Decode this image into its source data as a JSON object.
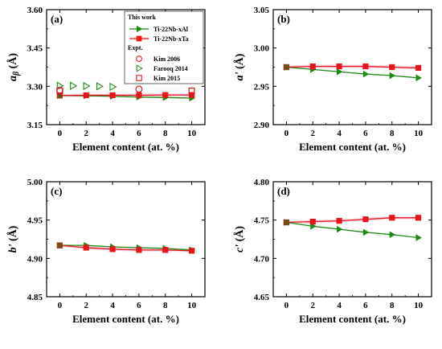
{
  "colors": {
    "al": "#1e8a14",
    "ta": "#e8151b",
    "marker_fill_overlap": "#7a4a1a",
    "expt": "#e8151b",
    "farooq": "#1e8a14",
    "band": "#f8c8dc"
  },
  "chart_data": [
    {
      "type": "line",
      "panel_label": "(a)",
      "xlabel": "Element content (at. %)",
      "ylabel": "a_β (Å)",
      "ylabel_main": "a",
      "ylabel_sub": "β",
      "ylabel_unit": " (Å)",
      "xlim": [
        -1,
        11
      ],
      "ylim": [
        3.15,
        3.6
      ],
      "xticks": [
        0,
        2,
        4,
        6,
        8,
        10
      ],
      "yticks": [
        3.15,
        3.3,
        3.45,
        3.6
      ],
      "ytick_labels": [
        "3.15",
        "3.30",
        "3.45",
        "3.60"
      ],
      "x": [
        0,
        2,
        4,
        6,
        8,
        10
      ],
      "series": [
        {
          "name": "Ti-22Nb-xAl",
          "values": [
            3.264,
            3.263,
            3.261,
            3.258,
            3.256,
            3.254
          ],
          "marker": "triangle-right",
          "color": "#1e8a14"
        },
        {
          "name": "Ti-22Nb-xTa",
          "values": [
            3.264,
            3.265,
            3.265,
            3.265,
            3.266,
            3.266
          ],
          "marker": "square",
          "color": "#e8151b"
        }
      ],
      "expt": [
        {
          "name": "Kim 2006",
          "marker": "circle-open",
          "points": [
            [
              0,
              3.285
            ],
            [
              6,
              3.289
            ]
          ]
        },
        {
          "name": "Farooq 2014",
          "marker": "triangle-right-open",
          "points": [
            [
              0,
              3.302
            ],
            [
              1,
              3.302
            ],
            [
              2,
              3.301
            ],
            [
              3,
              3.3
            ],
            [
              4,
              3.298
            ]
          ]
        },
        {
          "name": "Kim 2015",
          "marker": "square-open",
          "points": [
            [
              0,
              3.282
            ],
            [
              10,
              3.282
            ]
          ]
        }
      ],
      "legend": {
        "work_title": "This work",
        "series_labels": [
          "Ti-22Nb-xAl",
          "Ti-22Nb-xTa"
        ],
        "expt_title": "Expt.",
        "expt_labels": [
          "Kim 2006",
          "Farooq 2014",
          "Kim 2015"
        ]
      }
    },
    {
      "type": "line",
      "panel_label": "(b)",
      "xlabel": "Element content (at. %)",
      "ylabel": "a' (Å)",
      "ylabel_main": "a",
      "ylabel_prime": "'",
      "ylabel_unit": " (Å)",
      "xlim": [
        -1,
        11
      ],
      "ylim": [
        2.9,
        3.05
      ],
      "xticks": [
        0,
        2,
        4,
        6,
        8,
        10
      ],
      "yticks": [
        2.9,
        2.95,
        3.0,
        3.05
      ],
      "ytick_labels": [
        "2.90",
        "2.95",
        "3.00",
        "3.05"
      ],
      "x": [
        0,
        2,
        4,
        6,
        8,
        10
      ],
      "series": [
        {
          "name": "Ti-22Nb-xAl",
          "values": [
            2.975,
            2.972,
            2.969,
            2.966,
            2.964,
            2.961
          ],
          "marker": "triangle-right",
          "color": "#1e8a14"
        },
        {
          "name": "Ti-22Nb-xTa",
          "values": [
            2.975,
            2.976,
            2.976,
            2.976,
            2.975,
            2.974
          ],
          "marker": "square",
          "color": "#e8151b"
        }
      ]
    },
    {
      "type": "line",
      "panel_label": "(c)",
      "xlabel": "Element content (at. %)",
      "ylabel": "b' (Å)",
      "ylabel_main": "b",
      "ylabel_prime": "'",
      "ylabel_unit": " (Å)",
      "xlim": [
        -1,
        11
      ],
      "ylim": [
        4.85,
        5.0
      ],
      "xticks": [
        0,
        2,
        4,
        6,
        8,
        10
      ],
      "yticks": [
        4.85,
        4.9,
        4.95,
        5.0
      ],
      "ytick_labels": [
        "4.85",
        "4.90",
        "4.95",
        "5.00"
      ],
      "x": [
        0,
        2,
        4,
        6,
        8,
        10
      ],
      "series": [
        {
          "name": "Ti-22Nb-xAl",
          "values": [
            4.917,
            4.917,
            4.915,
            4.914,
            4.913,
            4.911
          ],
          "marker": "triangle-right",
          "color": "#1e8a14"
        },
        {
          "name": "Ti-22Nb-xTa",
          "values": [
            4.917,
            4.914,
            4.912,
            4.911,
            4.911,
            4.91
          ],
          "marker": "square",
          "color": "#e8151b"
        }
      ]
    },
    {
      "type": "line",
      "panel_label": "(d)",
      "xlabel": "Element content (at. %)",
      "ylabel": "c' (Å)",
      "ylabel_main": "c",
      "ylabel_prime": "'",
      "ylabel_unit": " (Å)",
      "xlim": [
        -1,
        11
      ],
      "ylim": [
        4.65,
        4.8
      ],
      "xticks": [
        0,
        2,
        4,
        6,
        8,
        10
      ],
      "yticks": [
        4.65,
        4.7,
        4.75,
        4.8
      ],
      "ytick_labels": [
        "4.65",
        "4.70",
        "4.75",
        "4.80"
      ],
      "x": [
        0,
        2,
        4,
        6,
        8,
        10
      ],
      "series": [
        {
          "name": "Ti-22Nb-xAl",
          "values": [
            4.747,
            4.742,
            4.738,
            4.734,
            4.731,
            4.727
          ],
          "marker": "triangle-right",
          "color": "#1e8a14"
        },
        {
          "name": "Ti-22Nb-xTa",
          "values": [
            4.747,
            4.748,
            4.749,
            4.751,
            4.753,
            4.753
          ],
          "marker": "square",
          "color": "#e8151b"
        }
      ]
    }
  ]
}
